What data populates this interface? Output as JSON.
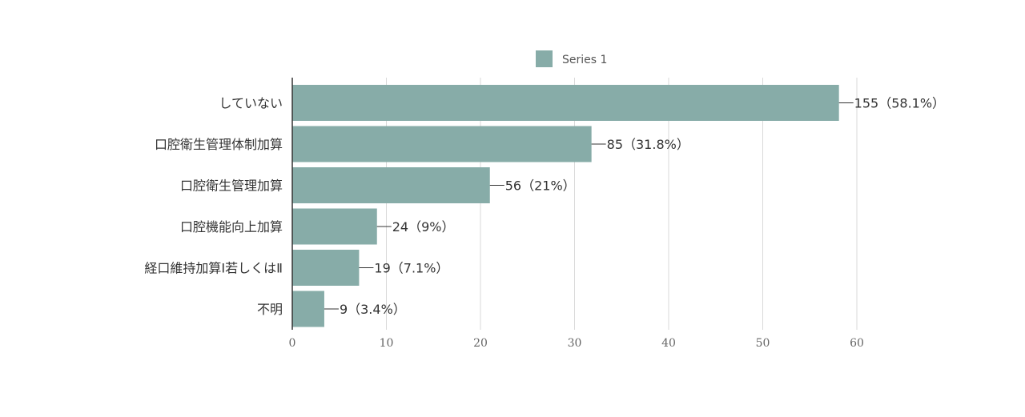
{
  "chart_data": {
    "type": "bar",
    "orientation": "horizontal",
    "categories": [
      "していない",
      "口腔衛生管理体制加算",
      "口腔衛生管理加算",
      "口腔機能向上加算",
      "経口維持加算Ⅰ若しくはⅡ",
      "不明"
    ],
    "series": [
      {
        "name": "Series 1",
        "values": [
          58.1,
          31.8,
          21,
          9,
          7.1,
          3.4
        ],
        "labels": [
          "155（58.1%）",
          "85（31.8%）",
          "56（21%）",
          "24（9%）",
          "19（7.1%）",
          "9（3.4%）"
        ]
      }
    ],
    "xlim": [
      0,
      60
    ],
    "ticks": [
      "0",
      "10",
      "20",
      "30",
      "40",
      "50",
      "60"
    ],
    "grid": true,
    "legend_position": "top",
    "colors": {
      "bar": "#87aca8"
    }
  }
}
